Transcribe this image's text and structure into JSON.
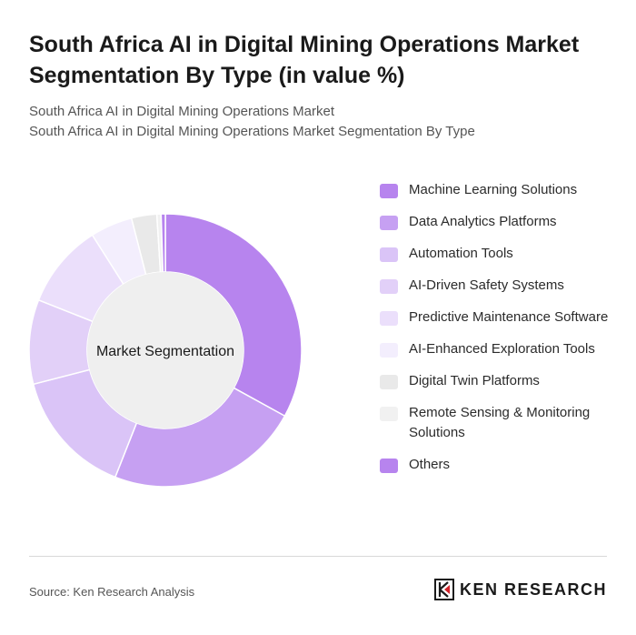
{
  "page": {
    "title": "South Africa AI in Digital Mining Operations Market Segmentation By Type (in value %)",
    "subtitle_line1": "South Africa AI in Digital Mining Operations Market",
    "subtitle_line2": "South Africa AI in Digital Mining Operations Market Segmentation By Type",
    "source": "Source: Ken Research Analysis",
    "brand": "KEN RESEARCH",
    "brand_icon": "ken-research-logo-icon"
  },
  "chart_data": {
    "type": "pie",
    "variant": "donut",
    "center_label": "Market Segmentation",
    "start_angle_deg": 0,
    "direction": "clockwise",
    "legend_position": "right",
    "categories": [
      "Machine Learning Solutions",
      "Data Analytics Platforms",
      "Automation Tools",
      "AI-Driven Safety Systems",
      "Predictive Maintenance Software",
      "AI-Enhanced Exploration Tools",
      "Digital Twin Platforms",
      "Remote Sensing & Monitoring Solutions",
      "Others"
    ],
    "values": [
      33,
      23,
      15,
      10,
      10,
      5,
      3,
      0.5,
      0.5
    ],
    "colors": [
      "#b784ee",
      "#c6a0f2",
      "#dac4f7",
      "#e2d0f8",
      "#ebdffb",
      "#f3eefd",
      "#e9e9e9",
      "#f1f1f1",
      "#b784ee"
    ]
  }
}
